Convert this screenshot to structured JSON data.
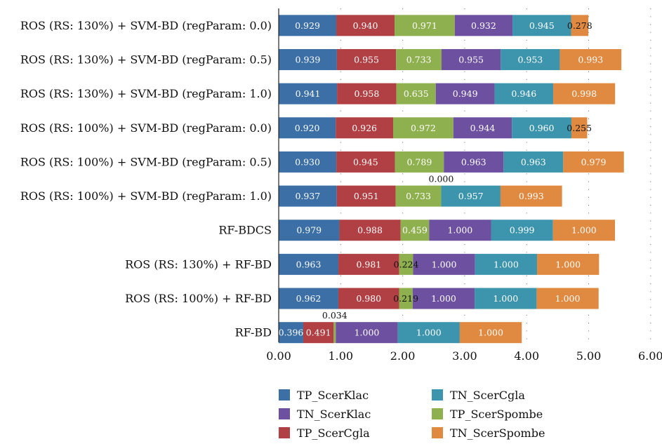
{
  "chart_data": {
    "type": "bar",
    "orientation": "horizontal",
    "stacked": true,
    "title": "",
    "xlabel": "",
    "ylabel": "",
    "xlim": [
      0,
      6
    ],
    "x_ticks": [
      "0.00",
      "1.00",
      "2.00",
      "3.00",
      "4.00",
      "5.00",
      "6.00"
    ],
    "grid": "vertical dotted",
    "legend_position": "bottom",
    "categories": [
      "ROS (RS: 130%) + SVM-BD (regParam: 0.0)",
      "ROS (RS: 130%) + SVM-BD (regParam: 0.5)",
      "ROS (RS: 130%) + SVM-BD (regParam: 1.0)",
      "ROS (RS: 100%) + SVM-BD (regParam: 0.0)",
      "ROS (RS: 100%) + SVM-BD (regParam: 0.5)",
      "ROS (RS: 100%) + SVM-BD (regParam: 1.0)",
      "RF-BDCS",
      "ROS (RS: 130%) + RF-BD",
      "ROS (RS: 100%) + RF-BD",
      "RF-BD"
    ],
    "series": [
      {
        "name": "TP_ScerKlac",
        "color": "#3b6fa5",
        "label_color": "#ffffff",
        "values": [
          0.929,
          0.939,
          0.941,
          0.92,
          0.93,
          0.937,
          0.979,
          0.963,
          0.962,
          0.396
        ]
      },
      {
        "name": "TP_ScerCgla",
        "color": "#b04044",
        "label_color": "#ffffff",
        "values": [
          0.94,
          0.955,
          0.958,
          0.926,
          0.945,
          0.951,
          0.988,
          0.981,
          0.98,
          0.491
        ]
      },
      {
        "name": "TP_ScerSpombe",
        "color": "#8fb04e",
        "label_color": "#ffffff",
        "values": [
          0.971,
          0.733,
          0.635,
          0.972,
          0.789,
          0.733,
          0.459,
          0.224,
          0.219,
          0.034
        ]
      },
      {
        "name": "TN_ScerKlac",
        "color": "#6d51a0",
        "label_color": "#ffffff",
        "values": [
          0.932,
          0.955,
          0.949,
          0.944,
          0.963,
          0.0,
          1.0,
          1.0,
          1.0,
          1.0
        ]
      },
      {
        "name": "TN_ScerCgla",
        "color": "#3d95ad",
        "label_color": "#ffffff",
        "values": [
          0.945,
          0.953,
          0.946,
          0.96,
          0.963,
          0.957,
          0.999,
          1.0,
          1.0,
          1.0
        ]
      },
      {
        "name": "TN_ScerSpombe",
        "color": "#e08a41",
        "label_color": "#ffffff",
        "values": [
          0.278,
          0.993,
          0.998,
          0.255,
          0.979,
          0.993,
          1.0,
          1.0,
          1.0,
          1.0
        ]
      }
    ],
    "value_labels": [
      [
        "0.929",
        "0.940",
        "0.971",
        "0.932",
        "0.945",
        "0.278"
      ],
      [
        "0.939",
        "0.955",
        "0.733",
        "0.955",
        "0.953",
        "0.993"
      ],
      [
        "0.941",
        "0.958",
        "0.635",
        "0.949",
        "0.946",
        "0.998"
      ],
      [
        "0.920",
        "0.926",
        "0.972",
        "0.944",
        "0.960",
        "0.255"
      ],
      [
        "0.930",
        "0.945",
        "0.789",
        "0.963",
        "0.963",
        "0.979"
      ],
      [
        "0.937",
        "0.951",
        "0.733",
        "0.000",
        "0.957",
        "0.993"
      ],
      [
        "0.979",
        "0.988",
        "0.459",
        "1.000",
        "0.999",
        "1.000"
      ],
      [
        "0.963",
        "0.981",
        "0.224",
        "1.000",
        "1.000",
        "1.000"
      ],
      [
        "0.962",
        "0.980",
        "0.219",
        "1.000",
        "1.000",
        "1.000"
      ],
      [
        "0.396",
        "0.491",
        "0.034",
        "1.000",
        "1.000",
        "1.000"
      ]
    ]
  },
  "legend": [
    {
      "label": "TP_ScerKlac",
      "color": "#3b6fa5"
    },
    {
      "label": "TN_ScerKlac",
      "color": "#6d51a0"
    },
    {
      "label": "TP_ScerCgla",
      "color": "#b04044"
    },
    {
      "label": "TN_ScerCgla",
      "color": "#3d95ad"
    },
    {
      "label": "TP_ScerSpombe",
      "color": "#8fb04e"
    },
    {
      "label": "TN_ScerSpombe",
      "color": "#e08a41"
    }
  ]
}
